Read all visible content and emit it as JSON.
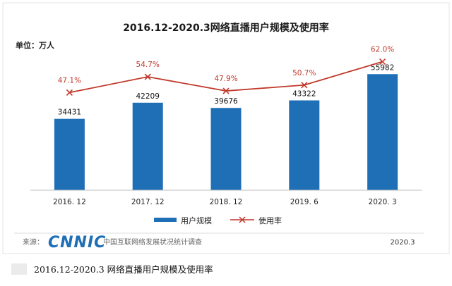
{
  "chart_data": {
    "type": "bar",
    "title": "2016.12-2020.3网络直播用户规模及使用率",
    "unit_label": "单位：万人",
    "categories": [
      "2016. 12",
      "2017. 12",
      "2018. 12",
      "2019. 6",
      "2020. 3"
    ],
    "series": [
      {
        "name": "用户规模",
        "type": "bar",
        "values": [
          34431,
          42209,
          39676,
          43322,
          55982
        ],
        "labels": [
          "34431",
          "42209",
          "39676",
          "43322",
          "55982"
        ],
        "color": "#1f6fb6"
      },
      {
        "name": "使用率",
        "type": "line",
        "values": [
          47.1,
          54.7,
          47.9,
          50.7,
          62.0
        ],
        "labels": [
          "47.1%",
          "54.7%",
          "47.9%",
          "50.7%",
          "62.0%"
        ],
        "color": "#c0392b"
      }
    ],
    "ylim": [
      0,
      70000
    ],
    "rate_ylim": [
      0,
      70
    ],
    "legend_position": "bottom",
    "grid": false
  },
  "footer": {
    "source_label": "来源：",
    "logo_text": "CNNIC",
    "org_text": "中国互联网络发展状况统计调查",
    "date": "2020.3"
  },
  "caption": "2016.12-2020.3 网络直播用户规模及使用率"
}
